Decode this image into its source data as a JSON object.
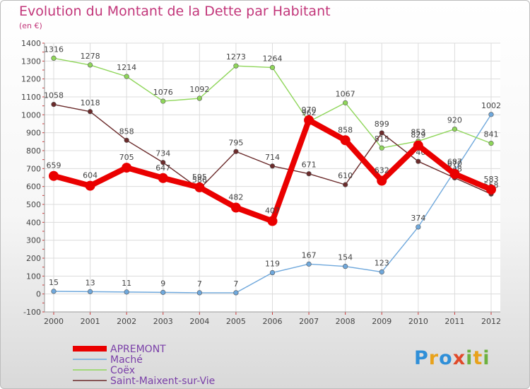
{
  "header": {
    "title": "Evolution du Montant de la Dette par Habitant",
    "unit": "(en €)"
  },
  "logo": {
    "text": "Proxiti"
  },
  "chart_data": {
    "type": "line",
    "x": [
      "2000",
      "2001",
      "2002",
      "2003",
      "2004",
      "2005",
      "2006",
      "2007",
      "2008",
      "2009",
      "2010",
      "2011",
      "2012"
    ],
    "ylim": [
      -100,
      1400
    ],
    "yticks": [
      -100,
      0,
      100,
      200,
      300,
      400,
      500,
      600,
      700,
      800,
      900,
      1000,
      1100,
      1200,
      1300,
      1400
    ],
    "grid": true,
    "legend": "bottom-left",
    "series": [
      {
        "name": "Maché",
        "color": "#6fa8dc",
        "values": [
          15,
          13,
          11,
          9,
          7,
          7,
          119,
          167,
          154,
          123,
          374,
          687,
          1002
        ]
      },
      {
        "name": "Coëx",
        "color": "#8fd65a",
        "values": [
          1316,
          1278,
          1214,
          1076,
          1092,
          1273,
          1264,
          962,
          1067,
          815,
          853,
          920,
          841
        ]
      },
      {
        "name": "Saint-Maixent-sur-Vie",
        "color": "#6b2b2b",
        "values": [
          1058,
          1018,
          858,
          734,
          586,
          795,
          714,
          671,
          610,
          899,
          740,
          648,
          558
        ]
      },
      {
        "name": "APREMONT",
        "color": "#ea0000",
        "values": [
          659,
          604,
          705,
          647,
          595,
          482,
          407,
          970,
          858,
          632,
          829,
          670,
          583
        ]
      }
    ]
  }
}
